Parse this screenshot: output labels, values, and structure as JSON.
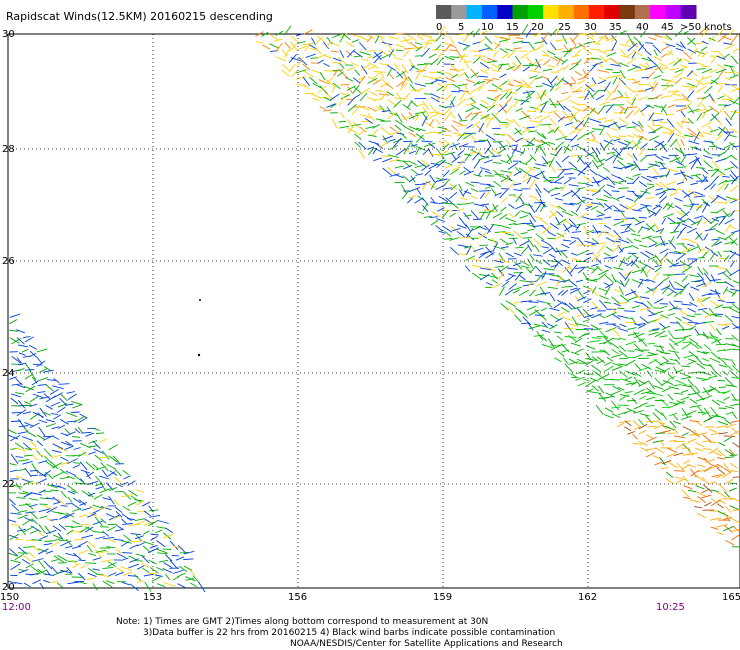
{
  "title": "Rapidscat Winds(12.5KM) 20160215 descending",
  "legend": {
    "unit_label": ">50 knots",
    "ticks": [
      "0",
      "5",
      "10",
      "15",
      "20",
      "25",
      "30",
      "35",
      "40",
      "45"
    ],
    "colors": [
      "#5a5a5a",
      "#9a9a9a",
      "#00b4ff",
      "#0060ff",
      "#0000c8",
      "#00a000",
      "#00d000",
      "#ffe000",
      "#ffb000",
      "#ff7000",
      "#ff2000",
      "#e00000",
      "#7a3a10",
      "#b07050",
      "#ff00ff",
      "#c000ff",
      "#6000b0"
    ]
  },
  "lat_labels": [
    "30",
    "28",
    "26",
    "24",
    "22",
    "20"
  ],
  "lon_labels": [
    "150",
    "153",
    "156",
    "159",
    "162",
    "165"
  ],
  "time_start": "12:00",
  "time_end": "10:25",
  "notes": [
    "Note: 1) Times are GMT 2)Times along bottom correspond to measurement at 30N",
    "3)Data buffer is 22 hrs from 20160215 4) Black wind barbs indicate possible contamination",
    "NOAA/NESDIS/Center for Satellite Applications and Research"
  ]
}
